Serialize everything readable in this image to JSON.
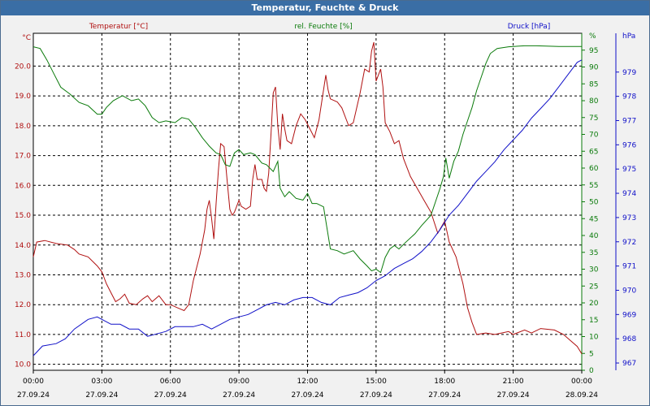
{
  "window": {
    "title": "Temperatur, Feuchte & Druck"
  },
  "chart_data": {
    "type": "line",
    "title": "Temperatur, Feuchte & Druck",
    "grid": true,
    "x": {
      "ticks": [
        "00:00",
        "03:00",
        "06:00",
        "09:00",
        "12:00",
        "15:00",
        "18:00",
        "21:00",
        "00:00"
      ],
      "dates": [
        "27.09.24",
        "27.09.24",
        "27.09.24",
        "27.09.24",
        "27.09.24",
        "27.09.24",
        "27.09.24",
        "27.09.24",
        "28.09.24"
      ],
      "range_hours": [
        0,
        24
      ]
    },
    "axes": {
      "temperature": {
        "unit": "°C",
        "min": 9.8,
        "max": 21.1,
        "ticks": [
          "10.0",
          "11.0",
          "12.0",
          "13.0",
          "14.0",
          "15.0",
          "16.0",
          "17.0",
          "18.0",
          "19.0",
          "20.0"
        ],
        "color": "#b01010"
      },
      "humidity": {
        "unit": "%",
        "min": 0,
        "max": 100,
        "ticks": [
          "0",
          "5",
          "10",
          "15",
          "20",
          "25",
          "30",
          "35",
          "40",
          "45",
          "50",
          "55",
          "60",
          "65",
          "70",
          "75",
          "80",
          "85",
          "90",
          "95"
        ],
        "color": "#0a7a0a"
      },
      "pressure": {
        "unit": "hPa",
        "min": 966.7,
        "max": 980.6,
        "ticks": [
          "967",
          "968",
          "969",
          "970",
          "971",
          "972",
          "973",
          "974",
          "975",
          "976",
          "977",
          "978",
          "979"
        ],
        "color": "#1010c8"
      }
    },
    "series": [
      {
        "name": "Temperatur [°C]",
        "axis": "temperature",
        "color": "#b01010",
        "points": [
          [
            0.0,
            13.6
          ],
          [
            0.15,
            14.1
          ],
          [
            0.5,
            14.15
          ],
          [
            1.0,
            14.05
          ],
          [
            1.5,
            14.0
          ],
          [
            1.8,
            13.85
          ],
          [
            2.0,
            13.7
          ],
          [
            2.4,
            13.6
          ],
          [
            2.8,
            13.3
          ],
          [
            3.0,
            13.1
          ],
          [
            3.2,
            12.7
          ],
          [
            3.4,
            12.4
          ],
          [
            3.6,
            12.1
          ],
          [
            3.8,
            12.2
          ],
          [
            4.0,
            12.35
          ],
          [
            4.2,
            12.05
          ],
          [
            4.5,
            12.0
          ],
          [
            4.8,
            12.2
          ],
          [
            5.0,
            12.3
          ],
          [
            5.2,
            12.1
          ],
          [
            5.5,
            12.3
          ],
          [
            5.8,
            12.0
          ],
          [
            6.0,
            12.0
          ],
          [
            6.3,
            11.9
          ],
          [
            6.6,
            11.8
          ],
          [
            6.8,
            12.0
          ],
          [
            7.0,
            12.8
          ],
          [
            7.3,
            13.7
          ],
          [
            7.5,
            14.5
          ],
          [
            7.6,
            15.2
          ],
          [
            7.7,
            15.5
          ],
          [
            7.8,
            14.9
          ],
          [
            7.9,
            14.2
          ],
          [
            8.0,
            15.4
          ],
          [
            8.1,
            16.5
          ],
          [
            8.2,
            17.4
          ],
          [
            8.35,
            17.3
          ],
          [
            8.5,
            16.0
          ],
          [
            8.6,
            15.2
          ],
          [
            8.7,
            15.0
          ],
          [
            8.8,
            15.1
          ],
          [
            9.0,
            15.5
          ],
          [
            9.1,
            15.3
          ],
          [
            9.3,
            15.2
          ],
          [
            9.5,
            15.3
          ],
          [
            9.6,
            16.2
          ],
          [
            9.7,
            16.7
          ],
          [
            9.8,
            16.2
          ],
          [
            10.0,
            16.2
          ],
          [
            10.1,
            15.9
          ],
          [
            10.2,
            15.8
          ],
          [
            10.3,
            16.4
          ],
          [
            10.4,
            17.7
          ],
          [
            10.5,
            19.1
          ],
          [
            10.6,
            19.3
          ],
          [
            10.7,
            18.0
          ],
          [
            10.8,
            17.2
          ],
          [
            10.9,
            18.4
          ],
          [
            11.0,
            17.9
          ],
          [
            11.1,
            17.5
          ],
          [
            11.3,
            17.4
          ],
          [
            11.5,
            18.0
          ],
          [
            11.7,
            18.4
          ],
          [
            11.9,
            18.2
          ],
          [
            12.1,
            17.9
          ],
          [
            12.3,
            17.6
          ],
          [
            12.5,
            18.2
          ],
          [
            12.6,
            18.7
          ],
          [
            12.8,
            19.7
          ],
          [
            12.9,
            19.2
          ],
          [
            13.0,
            18.9
          ],
          [
            13.3,
            18.8
          ],
          [
            13.5,
            18.6
          ],
          [
            13.7,
            18.2
          ],
          [
            13.8,
            18.0
          ],
          [
            14.0,
            18.1
          ],
          [
            14.3,
            19.1
          ],
          [
            14.5,
            19.9
          ],
          [
            14.7,
            19.8
          ],
          [
            14.8,
            20.5
          ],
          [
            14.9,
            20.8
          ],
          [
            15.0,
            19.5
          ],
          [
            15.2,
            19.9
          ],
          [
            15.3,
            19.3
          ],
          [
            15.4,
            18.1
          ],
          [
            15.6,
            17.8
          ],
          [
            15.8,
            17.4
          ],
          [
            16.0,
            17.5
          ],
          [
            16.2,
            16.9
          ],
          [
            16.5,
            16.3
          ],
          [
            16.8,
            15.9
          ],
          [
            17.1,
            15.5
          ],
          [
            17.4,
            15.1
          ],
          [
            17.7,
            14.4
          ],
          [
            18.0,
            14.8
          ],
          [
            18.2,
            14.1
          ],
          [
            18.5,
            13.6
          ],
          [
            18.8,
            12.7
          ],
          [
            19.0,
            11.9
          ],
          [
            19.2,
            11.4
          ],
          [
            19.4,
            11.0
          ],
          [
            19.8,
            11.05
          ],
          [
            20.2,
            11.0
          ],
          [
            20.8,
            11.1
          ],
          [
            21.0,
            11.0
          ],
          [
            21.5,
            11.15
          ],
          [
            21.8,
            11.05
          ],
          [
            22.2,
            11.2
          ],
          [
            22.8,
            11.15
          ],
          [
            23.2,
            11.0
          ],
          [
            23.5,
            10.8
          ],
          [
            23.8,
            10.6
          ],
          [
            24.0,
            10.35
          ]
        ]
      },
      {
        "name": "rel. Feuchte [%]",
        "axis": "humidity",
        "color": "#0a7a0a",
        "points": [
          [
            0.0,
            96
          ],
          [
            0.3,
            95.5
          ],
          [
            0.6,
            92
          ],
          [
            0.9,
            88
          ],
          [
            1.2,
            84
          ],
          [
            1.6,
            82
          ],
          [
            2.0,
            79.5
          ],
          [
            2.4,
            78.5
          ],
          [
            2.8,
            76
          ],
          [
            3.0,
            76
          ],
          [
            3.2,
            78
          ],
          [
            3.5,
            80
          ],
          [
            3.9,
            81.5
          ],
          [
            4.3,
            80
          ],
          [
            4.6,
            80.5
          ],
          [
            4.9,
            78.5
          ],
          [
            5.2,
            75
          ],
          [
            5.5,
            73.5
          ],
          [
            5.8,
            74
          ],
          [
            6.2,
            73.5
          ],
          [
            6.5,
            75
          ],
          [
            6.8,
            74.5
          ],
          [
            7.1,
            72
          ],
          [
            7.4,
            69
          ],
          [
            7.7,
            66.5
          ],
          [
            8.0,
            64.5
          ],
          [
            8.2,
            64
          ],
          [
            8.4,
            61
          ],
          [
            8.6,
            60.5
          ],
          [
            8.8,
            64.5
          ],
          [
            9.0,
            65.5
          ],
          [
            9.2,
            64
          ],
          [
            9.5,
            64.5
          ],
          [
            9.7,
            64
          ],
          [
            10.0,
            61.5
          ],
          [
            10.2,
            61
          ],
          [
            10.5,
            59
          ],
          [
            10.7,
            62
          ],
          [
            10.8,
            54
          ],
          [
            11.0,
            51.5
          ],
          [
            11.2,
            53
          ],
          [
            11.5,
            51
          ],
          [
            11.8,
            50.5
          ],
          [
            12.0,
            52.5
          ],
          [
            12.2,
            49.5
          ],
          [
            12.4,
            49.5
          ],
          [
            12.7,
            48.5
          ],
          [
            13.0,
            36
          ],
          [
            13.3,
            35.5
          ],
          [
            13.6,
            34.5
          ],
          [
            14.0,
            35.5
          ],
          [
            14.3,
            33
          ],
          [
            14.6,
            31
          ],
          [
            14.8,
            29.5
          ],
          [
            15.0,
            30
          ],
          [
            15.2,
            29
          ],
          [
            15.4,
            33.5
          ],
          [
            15.6,
            36
          ],
          [
            15.8,
            37
          ],
          [
            16.0,
            36
          ],
          [
            16.3,
            38
          ],
          [
            16.7,
            40.5
          ],
          [
            17.0,
            43
          ],
          [
            17.4,
            46
          ],
          [
            17.6,
            50
          ],
          [
            17.8,
            54
          ],
          [
            17.95,
            57.5
          ],
          [
            18.05,
            63
          ],
          [
            18.2,
            57
          ],
          [
            18.4,
            62
          ],
          [
            18.6,
            65
          ],
          [
            18.8,
            70
          ],
          [
            19.0,
            74
          ],
          [
            19.2,
            78
          ],
          [
            19.4,
            83
          ],
          [
            19.6,
            87
          ],
          [
            19.8,
            91
          ],
          [
            20.0,
            94
          ],
          [
            20.3,
            95.5
          ],
          [
            20.8,
            96
          ],
          [
            21.5,
            96.3
          ],
          [
            22.0,
            96.3
          ],
          [
            23.0,
            96.1
          ],
          [
            24.0,
            96.1
          ]
        ]
      },
      {
        "name": "Druck [hPa]",
        "axis": "pressure",
        "color": "#1010c8",
        "points": [
          [
            0.0,
            967.3
          ],
          [
            0.4,
            967.7
          ],
          [
            1.0,
            967.8
          ],
          [
            1.4,
            968.0
          ],
          [
            1.8,
            968.4
          ],
          [
            2.4,
            968.8
          ],
          [
            2.8,
            968.9
          ],
          [
            3.0,
            968.8
          ],
          [
            3.4,
            968.6
          ],
          [
            3.8,
            968.6
          ],
          [
            4.2,
            968.4
          ],
          [
            4.6,
            968.4
          ],
          [
            5.0,
            968.1
          ],
          [
            5.4,
            968.2
          ],
          [
            5.8,
            968.3
          ],
          [
            6.2,
            968.5
          ],
          [
            6.6,
            968.5
          ],
          [
            7.0,
            968.5
          ],
          [
            7.4,
            968.6
          ],
          [
            7.8,
            968.4
          ],
          [
            8.2,
            968.6
          ],
          [
            8.6,
            968.8
          ],
          [
            9.0,
            968.9
          ],
          [
            9.4,
            969.0
          ],
          [
            9.8,
            969.2
          ],
          [
            10.2,
            969.4
          ],
          [
            10.6,
            969.5
          ],
          [
            11.0,
            969.4
          ],
          [
            11.4,
            969.6
          ],
          [
            11.8,
            969.7
          ],
          [
            12.2,
            969.7
          ],
          [
            12.6,
            969.5
          ],
          [
            13.0,
            969.4
          ],
          [
            13.4,
            969.7
          ],
          [
            13.8,
            969.8
          ],
          [
            14.2,
            969.9
          ],
          [
            14.6,
            970.1
          ],
          [
            15.0,
            970.4
          ],
          [
            15.4,
            970.6
          ],
          [
            15.8,
            970.9
          ],
          [
            16.2,
            971.1
          ],
          [
            16.6,
            971.3
          ],
          [
            17.0,
            971.6
          ],
          [
            17.4,
            972.0
          ],
          [
            17.8,
            972.5
          ],
          [
            18.2,
            973.1
          ],
          [
            18.6,
            973.5
          ],
          [
            19.0,
            974.0
          ],
          [
            19.4,
            974.5
          ],
          [
            19.8,
            974.9
          ],
          [
            20.2,
            975.3
          ],
          [
            20.6,
            975.8
          ],
          [
            21.0,
            976.2
          ],
          [
            21.4,
            976.6
          ],
          [
            21.8,
            977.1
          ],
          [
            22.2,
            977.5
          ],
          [
            22.6,
            977.9
          ],
          [
            23.0,
            978.4
          ],
          [
            23.4,
            978.9
          ],
          [
            23.8,
            979.4
          ],
          [
            24.0,
            979.5
          ]
        ]
      }
    ]
  }
}
